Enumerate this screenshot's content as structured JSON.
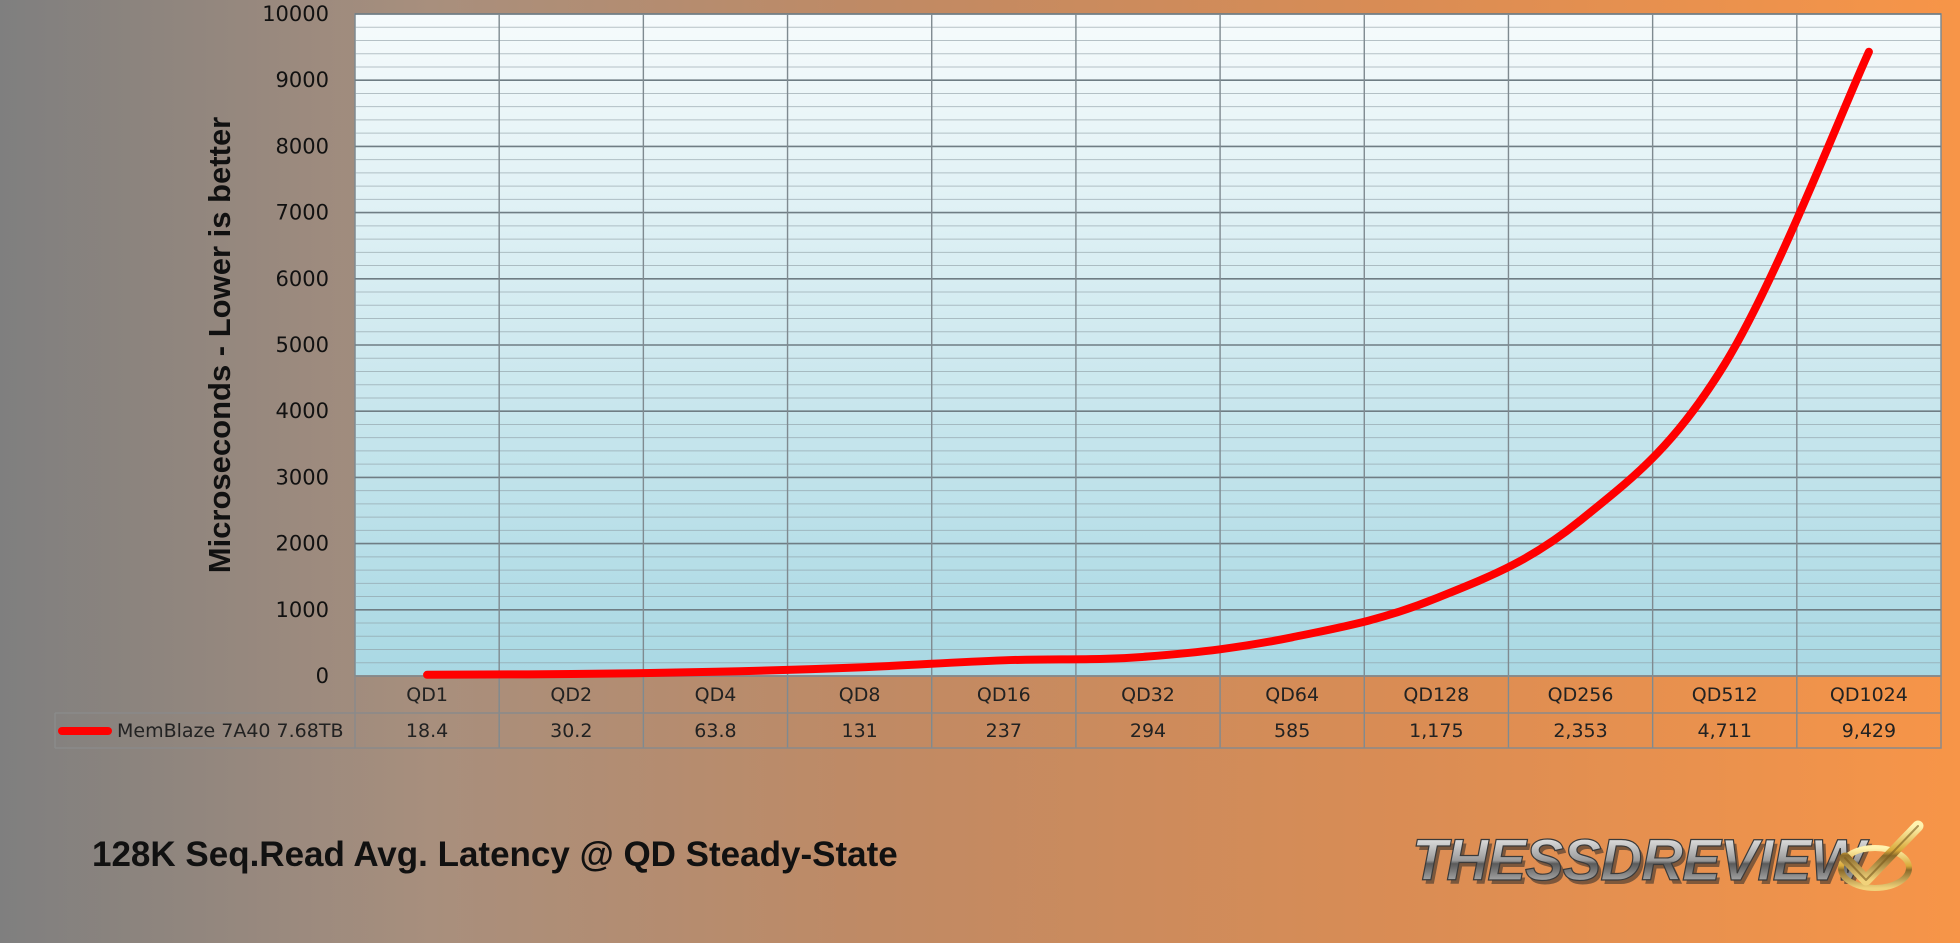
{
  "chart_data": {
    "type": "line",
    "title": "128K Seq.Read Avg. Latency @ QD Steady-State",
    "ylabel": "Microseconds - Lower is better",
    "xlabel": "",
    "ylim": [
      0,
      10000
    ],
    "yticks": [
      0,
      1000,
      2000,
      3000,
      4000,
      5000,
      6000,
      7000,
      8000,
      9000,
      10000
    ],
    "ytick_labels": [
      "0",
      "1000",
      "2000",
      "3000",
      "4000",
      "5000",
      "6000",
      "7000",
      "8000",
      "9000",
      "10000"
    ],
    "minor_gridlines_per_major": 5,
    "categories": [
      "QD1",
      "QD2",
      "QD4",
      "QD8",
      "QD16",
      "QD32",
      "QD64",
      "QD128",
      "QD256",
      "QD512",
      "QD1024"
    ],
    "series": [
      {
        "name": "MemBlaze 7A40 7.68TB",
        "color": "#ff0000",
        "values": [
          18.4,
          30.2,
          63.8,
          131,
          237,
          294,
          585,
          1175,
          2353,
          4711,
          9429
        ],
        "value_labels": [
          "18.4",
          "30.2",
          "63.8",
          "131",
          "237",
          "294",
          "585",
          "1,175",
          "2,353",
          "4,711",
          "9,429"
        ]
      }
    ],
    "legend": "data-table-left",
    "grid": true,
    "data_table": true
  },
  "logo": {
    "text": "THESSDREVIEW",
    "icon": "checkmark-icon"
  }
}
